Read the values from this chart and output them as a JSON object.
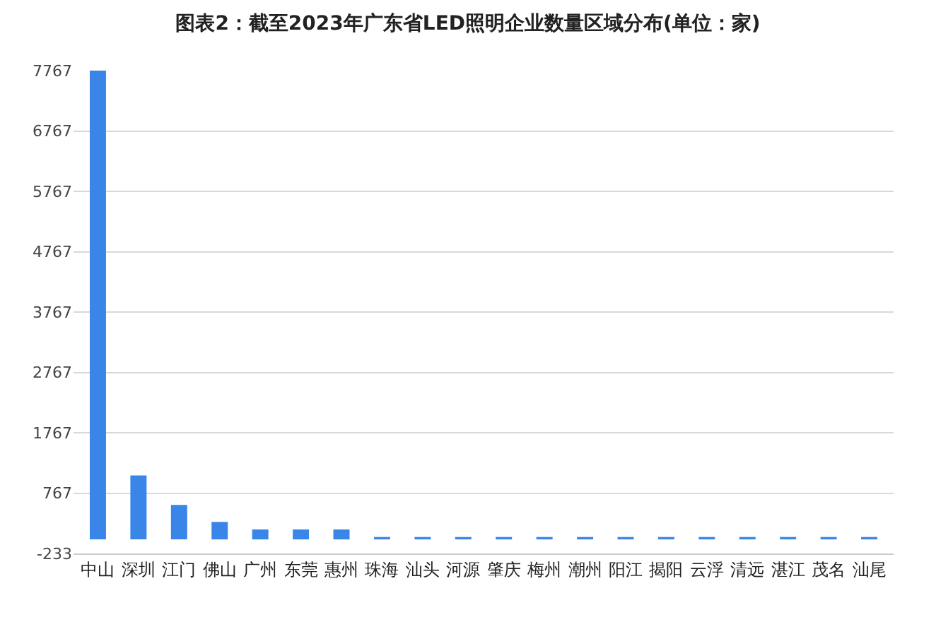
{
  "chart_data": {
    "type": "bar",
    "title": "图表2：截至2023年广东省LED照明企业数量区域分布(单位：家)",
    "categories": [
      "中山",
      "深圳",
      "江门",
      "佛山",
      "广州",
      "东莞",
      "惠州",
      "珠海",
      "汕头",
      "河源",
      "肇庆",
      "梅州",
      "潮州",
      "阳江",
      "揭阳",
      "云浮",
      "清远",
      "湛江",
      "茂名",
      "汕尾"
    ],
    "values": [
      7767,
      1060,
      570,
      290,
      165,
      165,
      165,
      40,
      40,
      40,
      40,
      40,
      40,
      40,
      40,
      40,
      40,
      40,
      40,
      40
    ],
    "color": "#3a86e8",
    "ylim": [
      -233,
      7767
    ],
    "yticks": [
      -233,
      767,
      1767,
      2767,
      3767,
      4767,
      5767,
      6767,
      7767
    ],
    "grid": "y"
  }
}
